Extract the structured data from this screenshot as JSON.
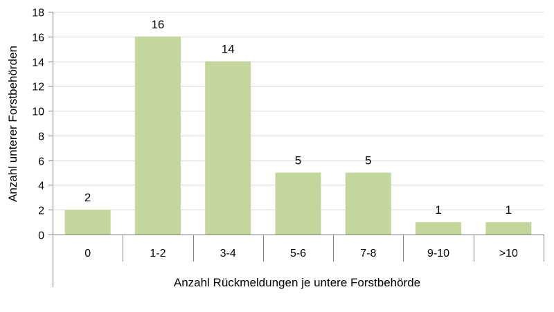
{
  "chart_data": {
    "type": "bar",
    "categories": [
      "0",
      "1-2",
      "3-4",
      "5-6",
      "7-8",
      "9-10",
      ">10"
    ],
    "values": [
      2,
      16,
      14,
      5,
      5,
      1,
      1
    ],
    "data_labels": [
      "2",
      "16",
      "14",
      "5",
      "5",
      "1",
      "1"
    ],
    "title": "",
    "xlabel": "Anzahl Rückmeldungen je untere Forstbehörde",
    "ylabel": "Anzahl unterer Forstbehörden",
    "ylim": [
      0,
      18
    ],
    "yticks": [
      0,
      2,
      4,
      6,
      8,
      10,
      12,
      14,
      16,
      18
    ],
    "ytick_labels": [
      "0",
      "2",
      "4",
      "6",
      "8",
      "10",
      "12",
      "14",
      "16",
      "18"
    ],
    "grid": true,
    "legend": "none",
    "colors": {
      "bar": "#c3d69b",
      "grid": "#d9d9d9",
      "axis": "#7f7f7f"
    }
  }
}
